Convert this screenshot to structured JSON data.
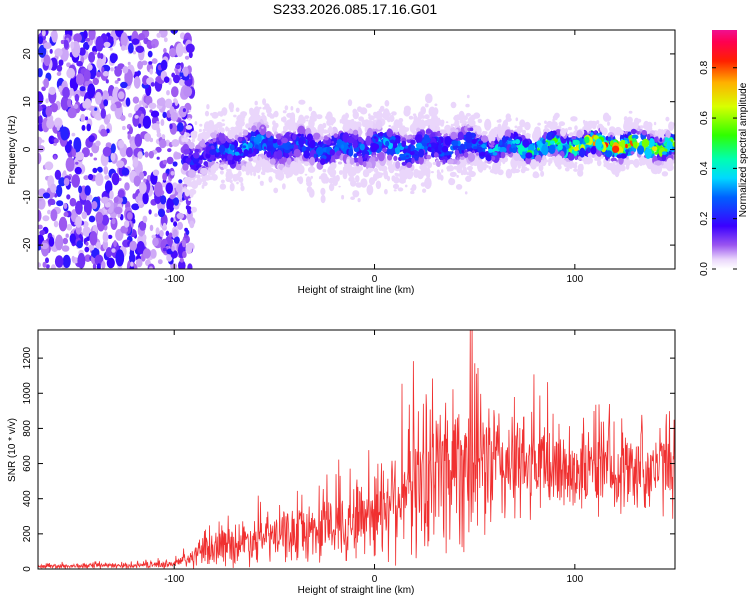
{
  "title": "S233.2026.085.17.16.G01",
  "chart_data": [
    {
      "type": "heatmap",
      "name": "spectrogram",
      "xlabel": "Height of straight line (km)",
      "ylabel": "Frequency (Hz)",
      "xlim": [
        -168,
        150
      ],
      "ylim": [
        -25,
        25
      ],
      "xticks": [
        -100,
        0,
        100
      ],
      "xtick_labels": [
        "-100",
        "0",
        "100"
      ],
      "yticks": [
        -20,
        -10,
        0,
        10,
        20
      ],
      "ytick_labels": [
        "-20",
        "-10",
        "0",
        "10",
        "20"
      ],
      "colorbar": {
        "label": "Normalized spectral amplitude",
        "range": [
          0,
          0.95
        ],
        "ticks": [
          0.0,
          0.2,
          0.4,
          0.6,
          0.8
        ],
        "tick_labels": [
          "0.0",
          "0.2",
          "0.4",
          "0.6",
          "0.8"
        ]
      },
      "band": {
        "description_points_km": [
          -92,
          -80,
          -60,
          -40,
          -20,
          0,
          20,
          40,
          60,
          80,
          100,
          120,
          150
        ],
        "center_hz": [
          -1.5,
          -1.0,
          1.0,
          0.5,
          0.0,
          1.0,
          0.0,
          1.0,
          0.5,
          0.5,
          1.0,
          1.0,
          0.5
        ],
        "peak_amplitude": [
          0.25,
          0.3,
          0.35,
          0.3,
          0.3,
          0.35,
          0.35,
          0.3,
          0.4,
          0.55,
          0.7,
          0.85,
          0.75
        ]
      }
    },
    {
      "type": "line",
      "name": "snr",
      "xlabel": "Height of straight line (km)",
      "ylabel": "SNR (10 * v/v)",
      "xlim": [
        -168,
        150
      ],
      "ylim": [
        0,
        1360
      ],
      "xticks": [
        -100,
        0,
        100
      ],
      "xtick_labels": [
        "-100",
        "0",
        "100"
      ],
      "yticks": [
        0,
        200,
        400,
        600,
        800,
        1000,
        1200
      ],
      "ytick_labels": [
        "0",
        "200",
        "400",
        "600",
        "800",
        "1000",
        "1200"
      ],
      "color": "#f03030",
      "envelope": {
        "x": [
          -168,
          -120,
          -100,
          -92,
          -80,
          -60,
          -40,
          -20,
          0,
          10,
          20,
          30,
          40,
          50,
          60,
          80,
          100,
          120,
          150
        ],
        "mean": [
          15,
          20,
          30,
          60,
          120,
          170,
          200,
          240,
          330,
          420,
          500,
          560,
          620,
          620,
          600,
          580,
          570,
          560,
          580
        ],
        "spread": [
          15,
          15,
          25,
          60,
          110,
          140,
          160,
          200,
          280,
          350,
          420,
          480,
          520,
          500,
          380,
          300,
          260,
          240,
          260
        ]
      }
    }
  ]
}
